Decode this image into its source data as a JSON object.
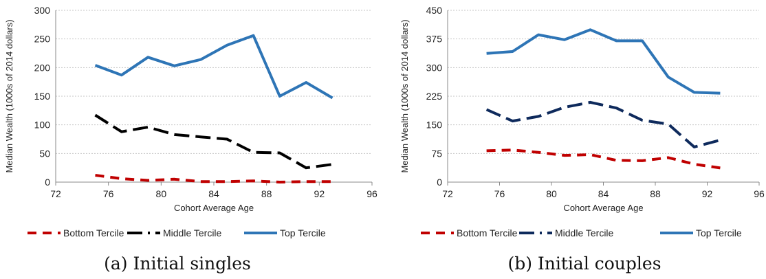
{
  "chart_data": [
    {
      "type": "line",
      "caption": "(a) Initial singles",
      "xlabel": "Cohort Average Age",
      "ylabel": "Median Wealth (1000s of 2014 dollars)",
      "xlim": [
        72,
        96
      ],
      "ylim": [
        0,
        300
      ],
      "xticks": [
        72,
        76,
        80,
        84,
        88,
        92,
        96
      ],
      "yticks": [
        0,
        50,
        100,
        150,
        200,
        250,
        300
      ],
      "grid": "horizontal",
      "legend": "bottom",
      "series": [
        {
          "name": "Bottom Tercile",
          "color": "#c00000",
          "style": "dashed",
          "x": [
            75,
            77,
            79,
            81,
            83,
            85,
            87,
            89,
            91,
            93
          ],
          "y": [
            12,
            6,
            3,
            5,
            1,
            1,
            2,
            0,
            1,
            1
          ]
        },
        {
          "name": "Middle Tercile",
          "color": "#000000",
          "style": "longdash",
          "x": [
            75,
            77,
            79,
            81,
            83,
            85,
            87,
            89,
            91,
            93
          ],
          "y": [
            117,
            88,
            96,
            83,
            79,
            75,
            52,
            51,
            25,
            31
          ]
        },
        {
          "name": "Top Tercile",
          "color": "#2e75b6",
          "style": "solid",
          "x": [
            75,
            77,
            79,
            81,
            83,
            85,
            87,
            89,
            91,
            93
          ],
          "y": [
            204,
            187,
            218,
            203,
            214,
            239,
            256,
            150,
            174,
            147
          ]
        }
      ]
    },
    {
      "type": "line",
      "caption": "(b) Initial couples",
      "xlabel": "Cohort Average Age",
      "ylabel": "Median Wealth (1000s of 2014 dollars)",
      "xlim": [
        72,
        96
      ],
      "ylim": [
        0,
        450
      ],
      "xticks": [
        72,
        76,
        80,
        84,
        88,
        92,
        96
      ],
      "yticks": [
        0,
        75,
        150,
        225,
        300,
        375,
        450
      ],
      "grid": "horizontal",
      "legend": "bottom",
      "series": [
        {
          "name": "Bottom Tercile",
          "color": "#c00000",
          "style": "dashed",
          "x": [
            75,
            77,
            79,
            81,
            83,
            85,
            87,
            89,
            91,
            93
          ],
          "y": [
            82,
            84,
            78,
            70,
            72,
            57,
            56,
            64,
            47,
            37
          ]
        },
        {
          "name": "Middle Tercile",
          "color": "#0e2a5c",
          "style": "longdash",
          "x": [
            75,
            77,
            79,
            81,
            83,
            85,
            87,
            89,
            91,
            93
          ],
          "y": [
            190,
            160,
            172,
            196,
            209,
            194,
            162,
            152,
            92,
            110
          ]
        },
        {
          "name": "Top Tercile",
          "color": "#2e75b6",
          "style": "solid",
          "x": [
            75,
            77,
            79,
            81,
            83,
            85,
            87,
            89,
            91,
            93
          ],
          "y": [
            337,
            342,
            386,
            373,
            399,
            370,
            370,
            275,
            235,
            233
          ]
        }
      ]
    }
  ]
}
